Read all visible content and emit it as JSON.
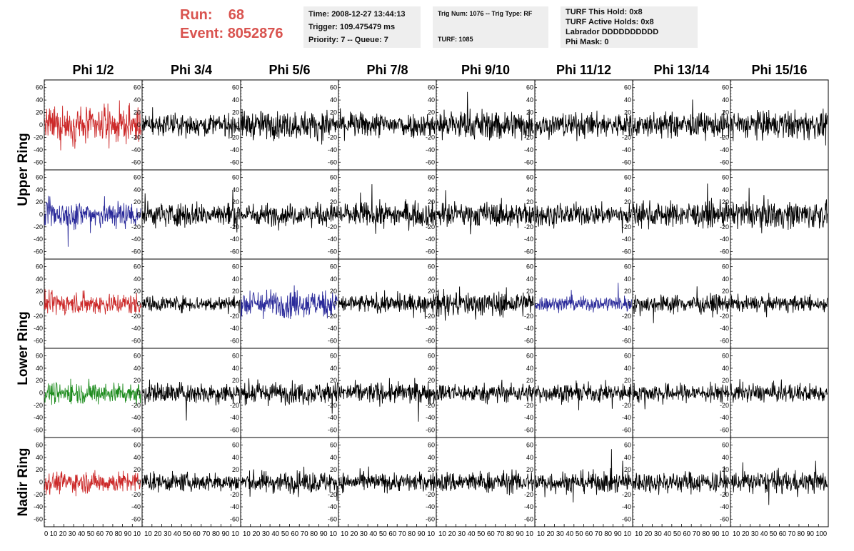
{
  "header": {
    "run_label": "Run:",
    "run_value": "68",
    "event_label": "Event:",
    "event_value": "8052876",
    "time": "Time: 2008-12-27 13:44:13",
    "trigger": "Trigger: 109.475479 ms",
    "priority": "Priority: 7 -- Queue: 7",
    "trig_num": "Trig Num: 1076 -- Trig Type: RF",
    "turf": "TURF: 1085",
    "turf_this_hold": "TURF This Hold: 0x8",
    "turf_active_holds": "TURF Active Holds: 0x8",
    "labrador": "Labrador DDDDDDDDDD",
    "phi_mask": "Phi Mask: 0"
  },
  "colors": {
    "red": "#cc2a2a",
    "blue": "#2a2a9a",
    "green": "#1e8c1e",
    "black": "#000000",
    "header_text": "#d9534f",
    "info_bg": "#eeeeee"
  },
  "chart_data": {
    "type": "line",
    "columns": [
      "Phi 1/2",
      "Phi 3/4",
      "Phi 5/6",
      "Phi 7/8",
      "Phi 9/10",
      "Phi 11/12",
      "Phi 13/14",
      "Phi 15/16"
    ],
    "rows": [
      "Upper Ring",
      "Upper Ring",
      "Lower Ring",
      "Lower Ring",
      "Nadir Ring"
    ],
    "row_labels": [
      {
        "text": "Upper Ring",
        "spans_rows": [
          0,
          1
        ]
      },
      {
        "text": "Lower Ring",
        "spans_rows": [
          2,
          3
        ]
      },
      {
        "text": "Nadir Ring",
        "spans_rows": [
          4
        ]
      }
    ],
    "xlim": [
      0,
      100
    ],
    "ylim": [
      -70,
      70
    ],
    "yticks": [
      -60,
      -40,
      -20,
      0,
      20,
      40,
      60
    ],
    "xtick_strip": [
      "0 10 20 30 40 50 60 70 80 90 10",
      "10 20 30 40 50 60 70 80 90 10",
      "10 20 30 40 50 60 70 80 90 10",
      "10 20 30 40 50 60 70 80 90 10",
      "10 20 30 40 50 60 70 80 90 10",
      "10 20 30 40 50 60 70 80 90 10",
      "10 20 30 40 50 60 70 80 90 10",
      "10 20 30 40 50 60 70 80 90 100"
    ],
    "trace_colors": [
      [
        "red",
        "black",
        "black",
        "black",
        "black",
        "black",
        "black",
        "black"
      ],
      [
        "blue",
        "black",
        "black",
        "black",
        "black",
        "black",
        "black",
        "black"
      ],
      [
        "red",
        "black",
        "blue",
        "black",
        "black",
        "blue",
        "black",
        "black"
      ],
      [
        "green",
        "black",
        "black",
        "black",
        "black",
        "black",
        "black",
        "black"
      ],
      [
        "red",
        "black",
        "black",
        "black",
        "black",
        "black",
        "black",
        "black"
      ]
    ],
    "amplitude": [
      [
        22,
        14,
        18,
        16,
        20,
        16,
        16,
        18
      ],
      [
        18,
        16,
        14,
        16,
        16,
        14,
        16,
        18
      ],
      [
        14,
        10,
        18,
        12,
        16,
        10,
        12,
        10
      ],
      [
        14,
        14,
        14,
        14,
        12,
        12,
        12,
        12
      ],
      [
        14,
        12,
        14,
        12,
        14,
        14,
        14,
        14
      ]
    ],
    "samples_per_trace": 260
  }
}
